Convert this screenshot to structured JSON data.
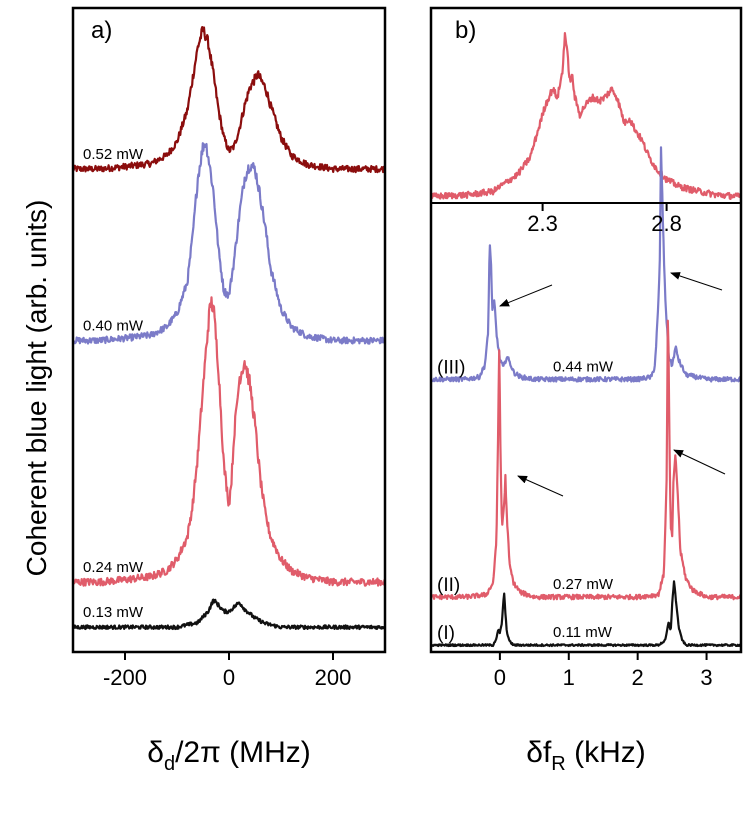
{
  "y_axis_title": "Coherent blue light (arb. units)",
  "chart_data": [
    {
      "type": "line",
      "panel": "a)",
      "xlabel": "δd/2π (MHz)",
      "xlabel_parts": {
        "main": "δ",
        "sub": "d",
        "rest": "/2π (MHz)"
      },
      "ylabel": "Coherent blue light (arb. units)",
      "xlim": [
        -300,
        300
      ],
      "ylim": [
        0,
        14
      ],
      "xticks": [
        -200,
        0,
        200
      ],
      "xtick_labels": [
        "-200",
        "0",
        "200"
      ],
      "series": [
        {
          "name": "0.52 mW",
          "color": "#8b0d0d",
          "label": "0.52 mW",
          "offset": 10.7,
          "noise": 0.07,
          "x": [
            -300,
            -250,
            -200,
            -150,
            -120,
            -100,
            -80,
            -70,
            -60,
            -50,
            -40,
            -30,
            -20,
            -10,
            0,
            10,
            20,
            30,
            40,
            50,
            55,
            60,
            70,
            80,
            100,
            120,
            150,
            200,
            250,
            300
          ],
          "y": [
            0,
            0,
            0.05,
            0.12,
            0.3,
            0.6,
            1.3,
            2,
            2.7,
            3.1,
            2.8,
            2.1,
            1.3,
            0.7,
            0.4,
            0.5,
            0.9,
            1.4,
            1.8,
            2,
            2.1,
            2,
            1.8,
            1.4,
            0.7,
            0.3,
            0.1,
            0,
            0,
            0
          ]
        },
        {
          "name": "0.40 mW",
          "color": "#7b7bc8",
          "label": "0.40 mW",
          "offset": 6.9,
          "noise": 0.07,
          "x": [
            -300,
            -250,
            -200,
            -150,
            -120,
            -100,
            -80,
            -70,
            -60,
            -50,
            -45,
            -40,
            -30,
            -20,
            -10,
            0,
            10,
            20,
            30,
            40,
            50,
            60,
            70,
            80,
            100,
            120,
            150,
            200,
            250,
            300
          ],
          "y": [
            0,
            0,
            0.05,
            0.12,
            0.3,
            0.6,
            1.3,
            2.3,
            3.6,
            4.3,
            4.4,
            4.1,
            3.3,
            2,
            1.1,
            1,
            1.8,
            2.8,
            3.6,
            3.9,
            3.8,
            3.2,
            2.5,
            1.6,
            0.7,
            0.3,
            0.1,
            0,
            0,
            0
          ]
        },
        {
          "name": "0.24 mW",
          "color": "#e05c6a",
          "label": "0.24 mW",
          "offset": 1.55,
          "noise": 0.08,
          "x": [
            -300,
            -250,
            -200,
            -150,
            -120,
            -100,
            -80,
            -70,
            -60,
            -50,
            -40,
            -35,
            -30,
            -20,
            -10,
            0,
            5,
            10,
            20,
            30,
            40,
            50,
            60,
            70,
            80,
            100,
            120,
            150,
            200,
            250,
            300
          ],
          "y": [
            0,
            0,
            0.05,
            0.12,
            0.25,
            0.5,
            1,
            1.7,
            2.8,
            4.3,
            5.7,
            6.2,
            6.1,
            4.7,
            2.6,
            1.7,
            2.3,
            3.3,
            4.5,
            4.9,
            4.4,
            3.5,
            2.3,
            1.5,
            1,
            0.5,
            0.25,
            0.1,
            0,
            0,
            0
          ]
        },
        {
          "name": "0.13 mW",
          "color": "#111111",
          "label": "0.13 mW",
          "offset": 0.55,
          "noise": 0.04,
          "x": [
            -300,
            -200,
            -100,
            -60,
            -40,
            -30,
            -25,
            -10,
            0,
            10,
            20,
            30,
            50,
            70,
            100,
            200,
            300
          ],
          "y": [
            0,
            0,
            0,
            0.1,
            0.35,
            0.6,
            0.55,
            0.35,
            0.35,
            0.45,
            0.55,
            0.4,
            0.2,
            0.08,
            0,
            0,
            0
          ]
        }
      ]
    },
    {
      "type": "line",
      "panel": "b)",
      "xlabel": "δfR (kHz)",
      "xlabel_parts": {
        "main": "δf",
        "sub": "R",
        "rest": " (kHz)"
      },
      "xlim": [
        -1,
        3.5
      ],
      "ylim": [
        0,
        9.6
      ],
      "xticks": [
        0,
        1,
        2,
        3
      ],
      "xtick_labels": [
        "0",
        "1",
        "2",
        "3"
      ],
      "series": [
        {
          "name": "0.44 mW",
          "color": "#7b7bc8",
          "label": "0.44 mW",
          "roman": "(III)",
          "offset": 5.95,
          "noise": 0.05,
          "x": [
            -1,
            -0.5,
            -0.3,
            -0.22,
            -0.17,
            -0.15,
            -0.13,
            -0.11,
            -0.08,
            -0.05,
            0,
            0.05,
            0.1,
            0.15,
            0.2,
            0.3,
            0.5,
            1,
            1.5,
            2,
            2.2,
            2.25,
            2.3,
            2.32,
            2.34,
            2.37,
            2.4,
            2.45,
            2.5,
            2.55,
            2.6,
            2.7,
            3,
            3.5
          ],
          "y": [
            0,
            0,
            0.05,
            0.3,
            1,
            3,
            2.6,
            1.5,
            1.7,
            1,
            0.45,
            0.25,
            0.5,
            0.35,
            0.15,
            0.05,
            0,
            0,
            0,
            0,
            0.05,
            0.3,
            1.6,
            2.5,
            5.1,
            3.2,
            1.8,
            0.5,
            0.3,
            0.7,
            0.4,
            0.1,
            0,
            0
          ]
        },
        {
          "name": "0.27 mW",
          "color": "#e05c6a",
          "label": "0.27 mW",
          "roman": "(II)",
          "offset": 1.2,
          "noise": 0.05,
          "x": [
            -1,
            -0.5,
            -0.2,
            -0.1,
            -0.05,
            -0.03,
            -0.01,
            0.01,
            0.03,
            0.06,
            0.08,
            0.1,
            0.14,
            0.2,
            0.3,
            0.5,
            1,
            2,
            2.3,
            2.38,
            2.42,
            2.44,
            2.46,
            2.48,
            2.5,
            2.52,
            2.55,
            2.58,
            2.62,
            2.7,
            2.8,
            3,
            3.5
          ],
          "y": [
            0,
            0,
            0.05,
            0.3,
            1.2,
            3.2,
            5.5,
            3,
            1.5,
            2,
            2.6,
            1.8,
            0.7,
            0.3,
            0.1,
            0,
            0,
            0,
            0.05,
            0.5,
            2.5,
            6.4,
            3.5,
            1.5,
            1.3,
            2.5,
            3.1,
            2.3,
            1,
            0.4,
            0.15,
            0,
            0
          ]
        },
        {
          "name": "0.11 mW",
          "color": "#111111",
          "label": "0.11 mW",
          "roman": "(I)",
          "offset": 0.15,
          "noise": 0.02,
          "x": [
            -1,
            -0.1,
            -0.05,
            -0.02,
            0,
            0.03,
            0.06,
            0.08,
            0.1,
            0.14,
            0.2,
            2.3,
            2.4,
            2.45,
            2.48,
            2.5,
            2.53,
            2.56,
            2.6,
            2.65,
            2.7,
            3.5
          ],
          "y": [
            0,
            0,
            0.15,
            0.35,
            0.25,
            0.5,
            1.15,
            0.7,
            0.3,
            0.08,
            0,
            0,
            0.1,
            0.5,
            0.3,
            0.9,
            1.4,
            0.9,
            0.35,
            0.1,
            0,
            0
          ]
        }
      ]
    },
    {
      "type": "line",
      "panel": "b) inset",
      "xlim": [
        1.85,
        3.1
      ],
      "ylim": [
        0,
        1.1
      ],
      "xticks": [
        2.3,
        2.8
      ],
      "xtick_labels": [
        "2.3",
        "2.8"
      ],
      "series": [
        {
          "name": "inset",
          "color": "#e05c6a",
          "noise": 0.018,
          "x": [
            1.85,
            2.0,
            2.1,
            2.15,
            2.2,
            2.25,
            2.28,
            2.31,
            2.34,
            2.36,
            2.38,
            2.39,
            2.4,
            2.41,
            2.42,
            2.43,
            2.45,
            2.47,
            2.5,
            2.53,
            2.55,
            2.58,
            2.6,
            2.63,
            2.65,
            2.67,
            2.7,
            2.73,
            2.76,
            2.8,
            2.85,
            2.9,
            3.0,
            3.1
          ],
          "y": [
            0.02,
            0.03,
            0.05,
            0.1,
            0.15,
            0.25,
            0.4,
            0.55,
            0.65,
            0.6,
            0.75,
            0.98,
            0.85,
            0.7,
            0.72,
            0.6,
            0.5,
            0.55,
            0.6,
            0.58,
            0.6,
            0.65,
            0.6,
            0.45,
            0.48,
            0.42,
            0.35,
            0.25,
            0.18,
            0.12,
            0.08,
            0.06,
            0.03,
            0.02
          ]
        }
      ]
    }
  ]
}
